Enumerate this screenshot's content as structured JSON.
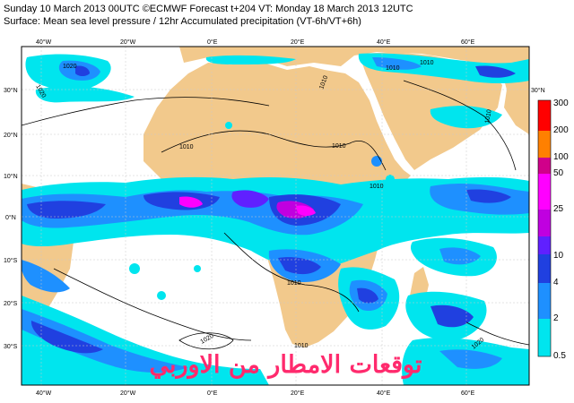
{
  "header": {
    "line1": "Sunday 10 March 2013 00UTC ©ECMWF Forecast t+204 VT: Monday 18 March 2013 12UTC",
    "line2": "Surface: Mean sea level pressure / 12hr Accumulated precipitation (VT-6h/VT+6h)"
  },
  "axes": {
    "lon_top": [
      "40°W",
      "20°W",
      "0°E",
      "20°E",
      "40°E",
      "60°E"
    ],
    "lon_bottom": [
      "40°W",
      "20°W",
      "0°E",
      "20°E",
      "40°E",
      "60°E"
    ],
    "lat_left": [
      "30°N",
      "20°N",
      "10°N",
      "0°N",
      "10°S",
      "20°S",
      "30°S"
    ],
    "lat_right": "30°N"
  },
  "isobars": [
    "1010",
    "1010",
    "1010",
    "1010",
    "1010",
    "1020",
    "1020",
    "1020",
    "1010",
    "1010",
    "1010",
    "1010",
    "1020"
  ],
  "colorbar": {
    "labels": [
      "300",
      "200",
      "100",
      "50",
      "25",
      "10",
      "4",
      "2",
      "0.5"
    ],
    "colors": [
      "#ff0000",
      "#ff8000",
      "#d0008a",
      "#ff00ff",
      "#c000e0",
      "#6020ff",
      "#2040e0",
      "#1e90ff",
      "#00e5ee"
    ]
  },
  "colors": {
    "ocean": "#ffffff",
    "land": "#f2c98c",
    "light_precip": "#00e5ee",
    "medium_precip": "#1e90ff",
    "heavy_precip": "#2040e0",
    "extreme_precip": "#ff00ff"
  },
  "watermark": "توقعات الامطار من الاوربي"
}
